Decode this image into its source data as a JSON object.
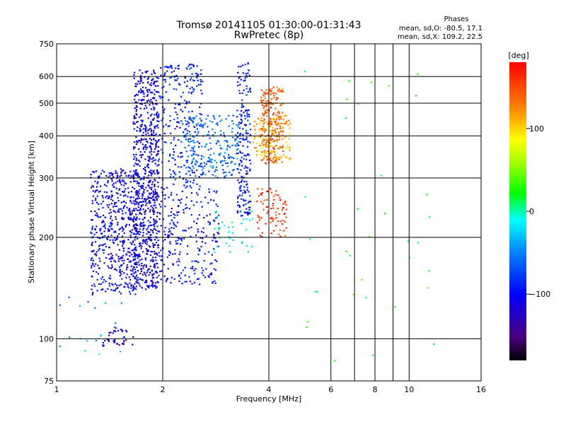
{
  "chart_data": {
    "type": "scatter",
    "title": "Tromsø 20141105 01:30:00-01:31:43",
    "subtitle": "RwPretec (8p)",
    "xlabel": "Frequency [MHz]",
    "ylabel": "Stationary phase Virtual Height [km]",
    "xscale": "log",
    "yscale": "log",
    "xlim": [
      1,
      16
    ],
    "ylim": [
      75,
      750
    ],
    "x_ticks": [
      1,
      2,
      4,
      6,
      8,
      10,
      16
    ],
    "x_minor_grid": [
      7,
      9
    ],
    "y_ticks": [
      75,
      100,
      200,
      300,
      400,
      500,
      600,
      750
    ],
    "grid": true,
    "colorbar": {
      "label": "[deg]",
      "ticks": [
        100,
        0,
        -100
      ],
      "range": [
        -180,
        180
      ]
    },
    "stats": {
      "heading": "Phases",
      "o_mode": "mean, sd,O: -80.5, 17.1",
      "x_mode": "mean, sd,X: 109.2, 22.5"
    },
    "point_groups": [
      {
        "x": [
          1.65,
          1.95
        ],
        "y": [
          140,
          630
        ],
        "phase": -110,
        "count": 700
      },
      {
        "x": [
          1.95,
          2.6
        ],
        "y": [
          280,
          660
        ],
        "phase": -90,
        "count": 260
      },
      {
        "x": [
          2.3,
          3.3
        ],
        "y": [
          300,
          460
        ],
        "phase": -60,
        "count": 220
      },
      {
        "x": [
          3.25,
          3.55
        ],
        "y": [
          230,
          660
        ],
        "phase": -95,
        "count": 200
      },
      {
        "x": [
          1.25,
          1.7
        ],
        "y": [
          135,
          320
        ],
        "phase": -105,
        "count": 420
      },
      {
        "x": [
          1.4,
          1.9
        ],
        "y": [
          150,
          320
        ],
        "phase": -115,
        "count": 200
      },
      {
        "x": [
          1.9,
          2.9
        ],
        "y": [
          145,
          280
        ],
        "phase": -100,
        "count": 260
      },
      {
        "x": [
          1.35,
          1.65
        ],
        "y": [
          95,
          108
        ],
        "phase": -120,
        "count": 40
      },
      {
        "x": [
          3.8,
          4.4
        ],
        "y": [
          330,
          560
        ],
        "phase": 140,
        "count": 220
      },
      {
        "x": [
          3.6,
          4.6
        ],
        "y": [
          340,
          460
        ],
        "phase": 110,
        "count": 140
      },
      {
        "x": [
          3.7,
          4.5
        ],
        "y": [
          200,
          280
        ],
        "phase": 160,
        "count": 80
      },
      {
        "x": [
          2.8,
          3.6
        ],
        "y": [
          180,
          240
        ],
        "phase": -10,
        "count": 40
      },
      {
        "x": [
          5.0,
          12.0
        ],
        "y": [
          85,
          650
        ],
        "phase": 20,
        "count": 35
      },
      {
        "x": [
          1.0,
          1.6
        ],
        "y": [
          90,
          140
        ],
        "phase": -40,
        "count": 20
      }
    ]
  }
}
